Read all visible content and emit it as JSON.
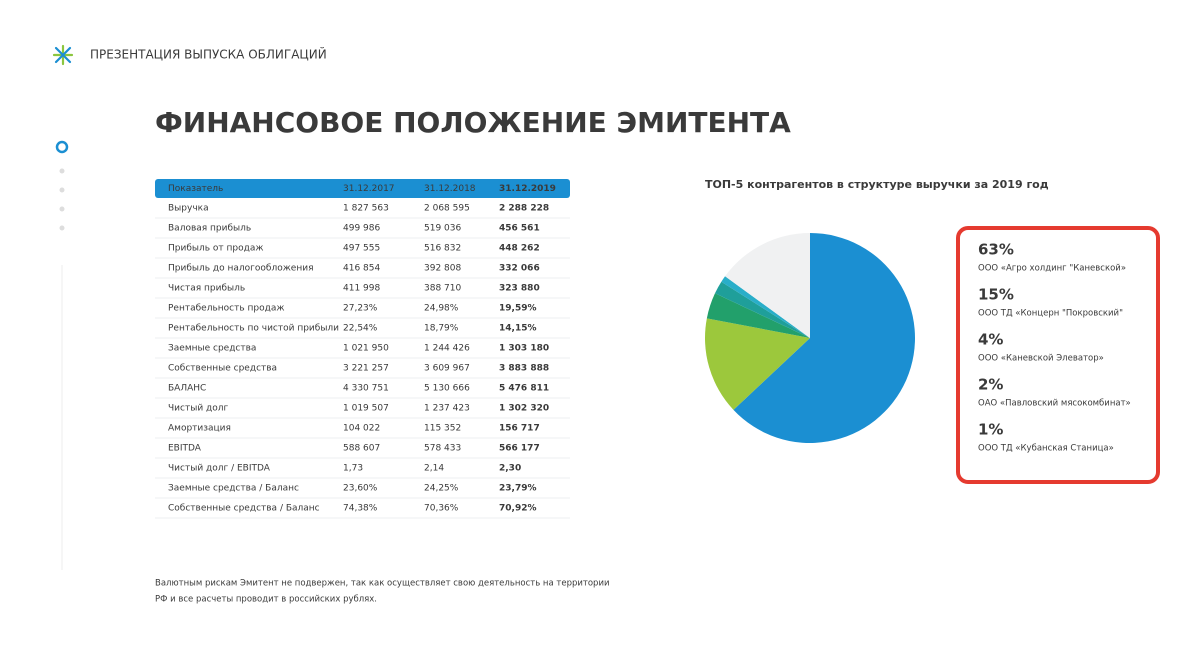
{
  "header": {
    "title": "ПРЕЗЕНТАЦИЯ ВЫПУСКА ОБЛИГАЦИЙ"
  },
  "title": "ФИНАНСОВОЕ ПОЛОЖЕНИЕ ЭМИТЕНТА",
  "table": {
    "columns": [
      "Показатель",
      "31.12.2017",
      "31.12.2018",
      "31.12.2019"
    ],
    "rows": [
      [
        "Выручка",
        "1 827 563",
        "2 068 595",
        "2 288 228"
      ],
      [
        "Валовая прибыль",
        "499 986",
        "519 036",
        "456 561"
      ],
      [
        "Прибыль от продаж",
        "497 555",
        "516 832",
        "448 262"
      ],
      [
        "Прибыль до налогообложения",
        "416 854",
        "392 808",
        "332 066"
      ],
      [
        "Чистая прибыль",
        "411 998",
        "388 710",
        "323 880"
      ],
      [
        "Рентабельность продаж",
        "27,23%",
        "24,98%",
        "19,59%"
      ],
      [
        "Рентабельность по чистой прибыли",
        "22,54%",
        "18,79%",
        "14,15%"
      ],
      [
        "Заемные средства",
        "1 021 950",
        "1 244 426",
        "1 303 180"
      ],
      [
        "Собственные средства",
        "3 221 257",
        "3 609 967",
        "3 883 888"
      ],
      [
        "БАЛАНС",
        "4 330 751",
        "5 130 666",
        "5 476 811"
      ],
      [
        "Чистый долг",
        "1 019 507",
        "1 237 423",
        "1 302 320"
      ],
      [
        "Амортизация",
        "104 022",
        "115 352",
        "156 717"
      ],
      [
        "EBITDA",
        "588 607",
        "578 433",
        "566 177"
      ],
      [
        "Чистый долг / EBITDA",
        "1,73",
        "2,14",
        "2,30"
      ],
      [
        "Заемные средства / Баланс",
        "23,60%",
        "24,25%",
        "23,79%"
      ],
      [
        "Собственные средства / Баланс",
        "74,38%",
        "70,36%",
        "70,92%"
      ]
    ]
  },
  "chart_data": {
    "type": "pie",
    "title": "ТОП-5 контрагентов в структуре выручки за 2019 год",
    "categories": [
      "ООО «Агро холдинг \"Каневской»",
      "ООО ТД «Концерн \"Покровский\"",
      "ООО «Каневской Элеватор»",
      "ОАО «Павловский мясокомбинат»",
      "ООО ТД «Кубанская Станица»",
      null
    ],
    "values": [
      63,
      15,
      4,
      2,
      1,
      15
    ],
    "value_labels": [
      "63%",
      "15%",
      "4%",
      "2%",
      "1%",
      null
    ],
    "colors": [
      "#1b8fd2",
      "#9cc83c",
      "#22a06b",
      "#1f9f9a",
      "#29aec9",
      "#f0f1f2"
    ]
  },
  "footnote": [
    "Валютным рискам Эмитент не подвержен, так как осуществляет свою деятельность на территории",
    "РФ и все расчеты проводит в российских рублях."
  ]
}
